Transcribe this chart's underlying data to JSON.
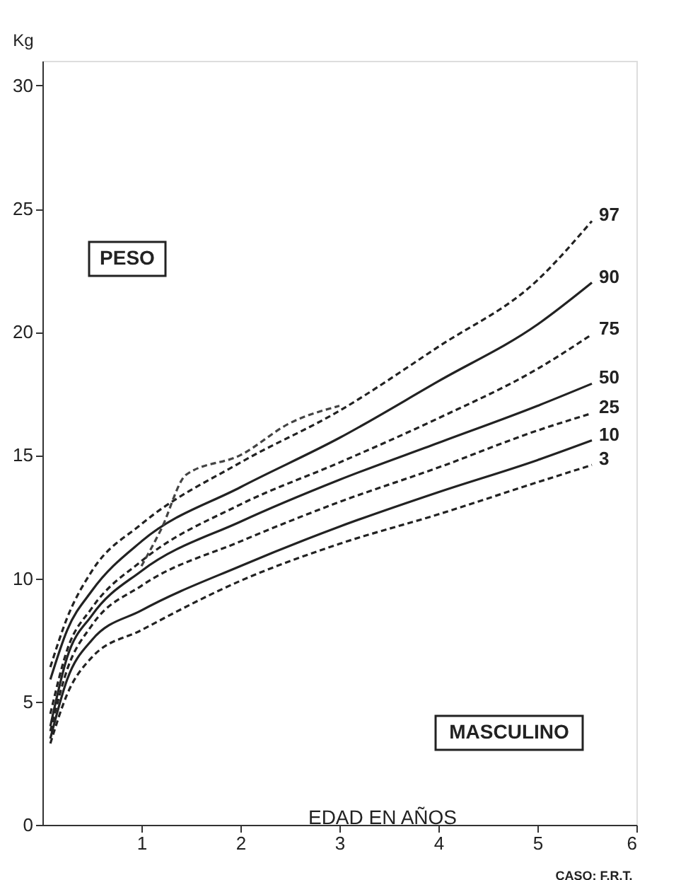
{
  "chart_data": {
    "type": "line",
    "xlabel": "EDAD EN AÑOS",
    "ylabel": "Kg",
    "xlim": [
      0,
      6
    ],
    "ylim": [
      0,
      31
    ],
    "xticks": [
      1,
      2,
      3,
      4,
      5,
      6
    ],
    "yticks": [
      0,
      5,
      10,
      15,
      20,
      25,
      30
    ],
    "grid": false,
    "marker": "none",
    "annotations": [
      "PESO",
      "MASCULINO",
      "CASO: F.R.T."
    ],
    "x": [
      0.08,
      0.25,
      0.5,
      1,
      2,
      3,
      4,
      5,
      5.55
    ],
    "series": [
      {
        "name": "97",
        "color": "#222222",
        "line_style": "dashed",
        "values": [
          6.4,
          8.4,
          10.3,
          12.2,
          14.7,
          16.8,
          19.4,
          22.1,
          24.5
        ]
      },
      {
        "name": "90",
        "color": "#222222",
        "line_style": "solid",
        "values": [
          5.9,
          7.9,
          9.5,
          11.5,
          13.7,
          15.7,
          18.0,
          20.3,
          22.0
        ]
      },
      {
        "name": "75",
        "color": "#222222",
        "line_style": "dashed",
        "values": [
          4.5,
          7.1,
          8.8,
          10.7,
          13.0,
          14.7,
          16.5,
          18.5,
          19.9
        ]
      },
      {
        "name": "50",
        "color": "#222222",
        "line_style": "solid",
        "values": [
          4.0,
          6.8,
          8.5,
          10.3,
          12.3,
          14.0,
          15.5,
          17.0,
          17.9
        ]
      },
      {
        "name": "25",
        "color": "#222222",
        "line_style": "dashed",
        "values": [
          3.8,
          6.3,
          8.1,
          9.7,
          11.5,
          13.1,
          14.5,
          16.0,
          16.7
        ]
      },
      {
        "name": "10",
        "color": "#222222",
        "line_style": "solid",
        "values": [
          3.5,
          5.9,
          7.5,
          8.7,
          10.5,
          12.1,
          13.5,
          14.8,
          15.6
        ]
      },
      {
        "name": "3",
        "color": "#222222",
        "line_style": "dashed",
        "values": [
          3.3,
          5.3,
          6.8,
          7.9,
          9.9,
          11.4,
          12.6,
          13.9,
          14.6
        ]
      },
      {
        "color": "#444444",
        "line_style": "dashed",
        "x": [
          1.0,
          1.2,
          1.45,
          2,
          2.5,
          3
        ],
        "values": [
          10.5,
          12.0,
          14.2,
          15.0,
          16.3,
          17.0
        ]
      }
    ]
  }
}
